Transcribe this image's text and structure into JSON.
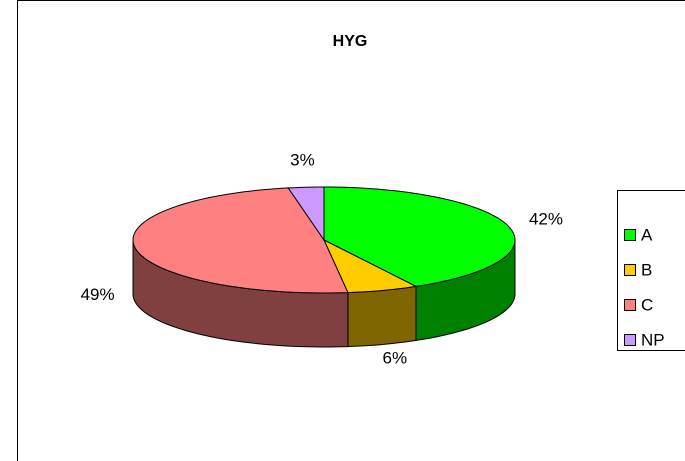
{
  "chart_data": {
    "type": "pie",
    "title": "HYG",
    "categories": [
      "A",
      "B",
      "C",
      "NP"
    ],
    "values": [
      42,
      6,
      49,
      3
    ],
    "value_labels": [
      "42%",
      "6%",
      "49%",
      "3%"
    ],
    "colors": [
      "#00ff00",
      "#ffcc00",
      "#ff8080",
      "#cc99ff"
    ],
    "side_colors": [
      "#008000",
      "#806600",
      "#804040",
      "#664c80"
    ],
    "legend": "right"
  }
}
